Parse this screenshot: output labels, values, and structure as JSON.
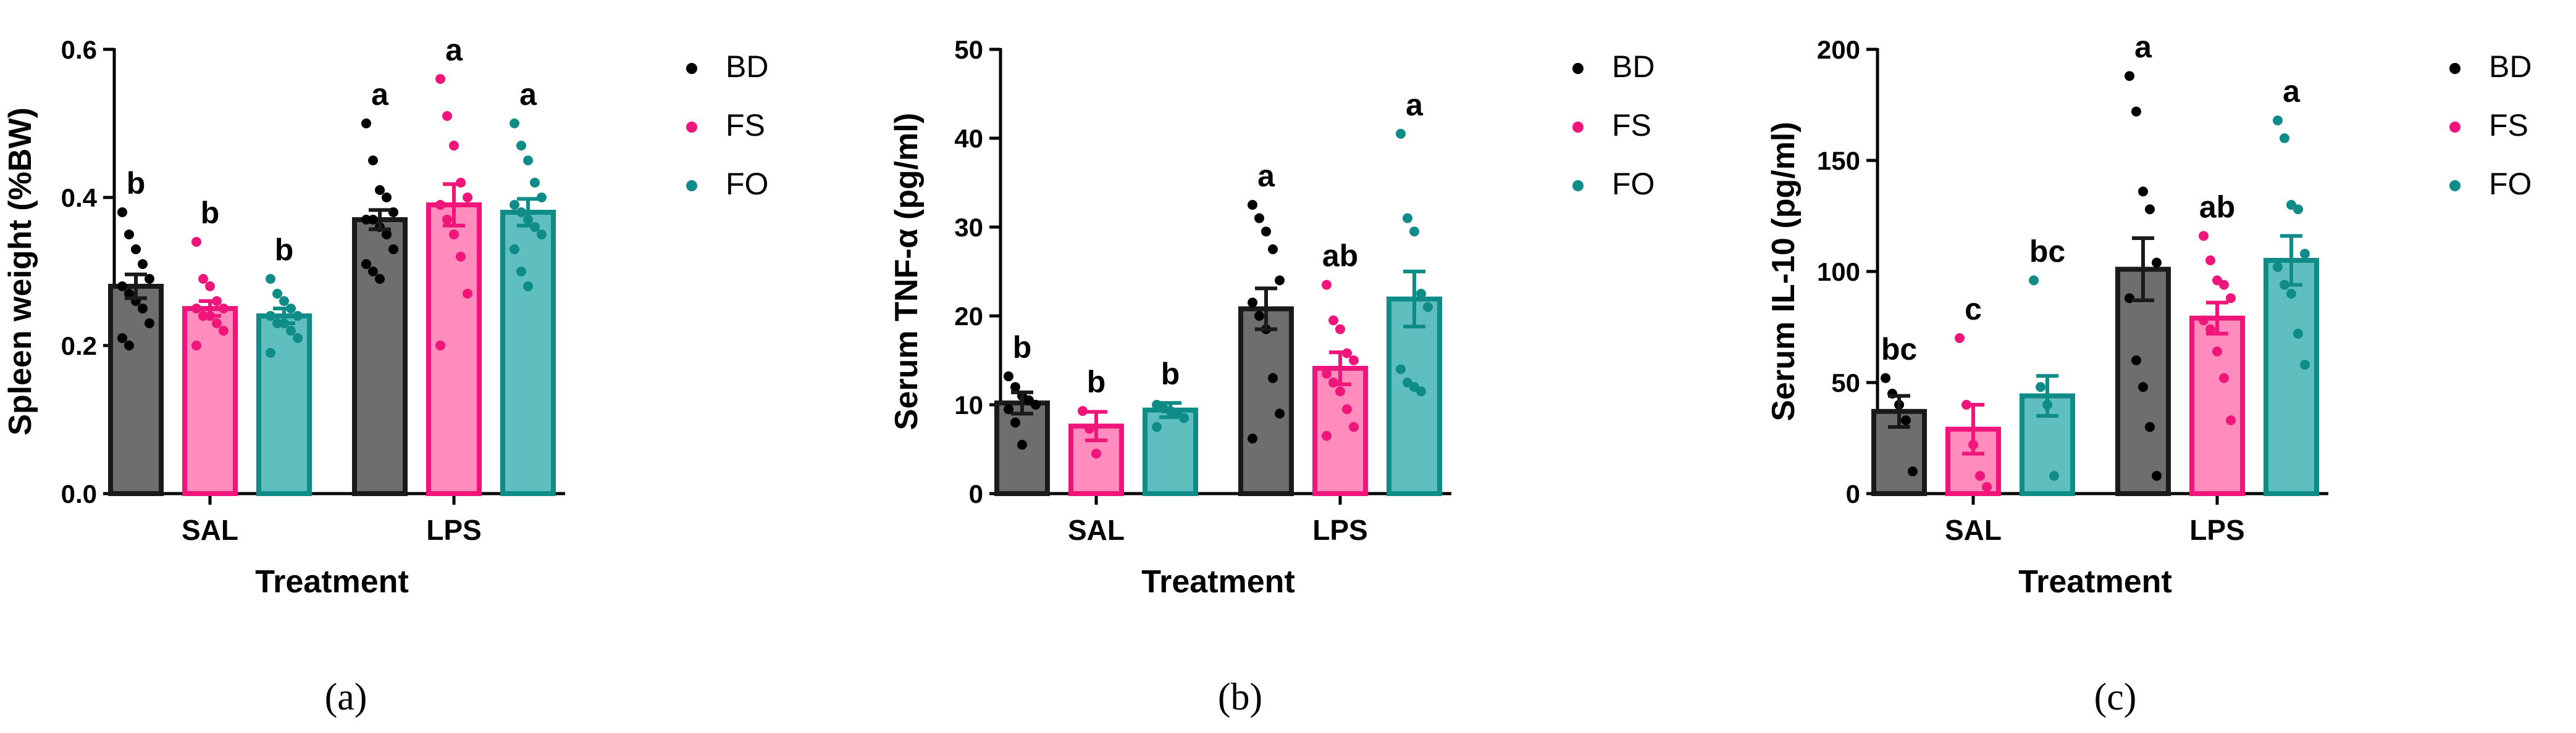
{
  "colors": {
    "BD": {
      "fill": "#6e6e6e",
      "stroke": "#1a1a1a",
      "dot": "#000000"
    },
    "FS": {
      "fill": "#ff8cbd",
      "stroke": "#f0157a",
      "dot": "#f0157a"
    },
    "FO": {
      "fill": "#5fbfbf",
      "stroke": "#108c88",
      "dot": "#108c88"
    }
  },
  "chart_data": [
    {
      "type": "bar",
      "panel": "(a)",
      "xlabel": "Treatment",
      "ylabel": "Spleen weight (%BW)",
      "categories": [
        "SAL",
        "LPS"
      ],
      "ylim": [
        0,
        0.6
      ],
      "yticks": [
        0.0,
        0.2,
        0.4,
        0.6
      ],
      "ytick_labels": [
        "0.0",
        "0.2",
        "0.4",
        "0.6"
      ],
      "legend": [
        "BD",
        "FS",
        "FO"
      ],
      "series": [
        {
          "name": "BD",
          "values": [
            0.28,
            0.37
          ],
          "sem": [
            0.016,
            0.013
          ],
          "letters": [
            "b",
            "a"
          ],
          "points": [
            [
              0.38,
              0.35,
              0.33,
              0.31,
              0.29,
              0.28,
              0.27,
              0.26,
              0.25,
              0.23,
              0.21,
              0.2
            ],
            [
              0.5,
              0.45,
              0.41,
              0.4,
              0.38,
              0.37,
              0.37,
              0.36,
              0.35,
              0.33,
              0.31,
              0.3,
              0.29
            ]
          ]
        },
        {
          "name": "FS",
          "values": [
            0.25,
            0.39
          ],
          "sem": [
            0.01,
            0.028
          ],
          "letters": [
            "b",
            "a"
          ],
          "points": [
            [
              0.34,
              0.29,
              0.28,
              0.26,
              0.25,
              0.25,
              0.24,
              0.24,
              0.23,
              0.22,
              0.2
            ],
            [
              0.56,
              0.51,
              0.47,
              0.42,
              0.4,
              0.39,
              0.37,
              0.35,
              0.32,
              0.27,
              0.2
            ]
          ]
        },
        {
          "name": "FO",
          "values": [
            0.24,
            0.38
          ],
          "sem": [
            0.01,
            0.018
          ],
          "letters": [
            "b",
            "a"
          ],
          "points": [
            [
              0.29,
              0.27,
              0.26,
              0.25,
              0.24,
              0.24,
              0.23,
              0.23,
              0.22,
              0.21,
              0.19
            ],
            [
              0.5,
              0.47,
              0.45,
              0.42,
              0.4,
              0.39,
              0.38,
              0.37,
              0.36,
              0.35,
              0.33,
              0.3,
              0.28
            ]
          ]
        }
      ]
    },
    {
      "type": "bar",
      "panel": "(b)",
      "xlabel": "Treatment",
      "ylabel": "Serum  TNF-α (pg/ml)",
      "categories": [
        "SAL",
        "LPS"
      ],
      "ylim": [
        0,
        50
      ],
      "yticks": [
        0,
        10,
        20,
        30,
        40,
        50
      ],
      "ytick_labels": [
        "0",
        "10",
        "20",
        "30",
        "40",
        "50"
      ],
      "legend": [
        "BD",
        "FS",
        "FO"
      ],
      "series": [
        {
          "name": "BD",
          "values": [
            10.2,
            20.8
          ],
          "sem": [
            1.2,
            2.3
          ],
          "letters": [
            "b",
            "a"
          ],
          "points": [
            [
              13.2,
              12.0,
              11.0,
              10.5,
              10.0,
              9.5,
              8.0,
              5.5
            ],
            [
              32.5,
              31.0,
              29.5,
              27.5,
              24.0,
              21.5,
              20.0,
              18.5,
              13.0,
              9.0,
              6.2
            ]
          ]
        },
        {
          "name": "FS",
          "values": [
            7.6,
            14.1
          ],
          "sem": [
            1.6,
            1.8
          ],
          "letters": [
            "b",
            "ab"
          ],
          "points": [
            [
              9.3,
              7.3,
              4.5
            ],
            [
              23.5,
              19.5,
              18.5,
              15.8,
              15.0,
              13.5,
              12.5,
              11.5,
              9.5,
              7.5,
              6.5
            ]
          ]
        },
        {
          "name": "FO",
          "values": [
            9.4,
            21.9
          ],
          "sem": [
            0.8,
            3.1
          ],
          "letters": [
            "b",
            "a"
          ],
          "points": [
            [
              10.0,
              9.6,
              9.3,
              9.0,
              8.5,
              7.5
            ],
            [
              40.5,
              31.0,
              29.5,
              22.5,
              21.0,
              14.0,
              12.5,
              12.0,
              11.5
            ]
          ]
        }
      ]
    },
    {
      "type": "bar",
      "panel": "(c)",
      "xlabel": "Treatment",
      "ylabel": "Serum  IL-10 (pg/ml)",
      "categories": [
        "SAL",
        "LPS"
      ],
      "ylim": [
        0,
        200
      ],
      "yticks": [
        0,
        50,
        100,
        150,
        200
      ],
      "ytick_labels": [
        "0",
        "50",
        "100",
        "150",
        "200"
      ],
      "legend": [
        "BD",
        "FS",
        "FO"
      ],
      "series": [
        {
          "name": "BD",
          "values": [
            37,
            101
          ],
          "sem": [
            7,
            14
          ],
          "letters": [
            "bc",
            "a"
          ],
          "points": [
            [
              52,
              45,
              40,
              33,
              10
            ],
            [
              188,
              172,
              136,
              128,
              104,
              88,
              60,
              48,
              30,
              8
            ]
          ]
        },
        {
          "name": "FS",
          "values": [
            29,
            79
          ],
          "sem": [
            11,
            7
          ],
          "letters": [
            "c",
            "ab"
          ],
          "points": [
            [
              70,
              40,
              22,
              8,
              3
            ],
            [
              116,
              105,
              96,
              94,
              88,
              78,
              74,
              64,
              52,
              33
            ]
          ]
        },
        {
          "name": "FO",
          "values": [
            44,
            105
          ],
          "sem": [
            9,
            11
          ],
          "letters": [
            "bc",
            "a"
          ],
          "points": [
            [
              96,
              48,
              40,
              8
            ],
            [
              168,
              160,
              130,
              128,
              108,
              102,
              94,
              90,
              72,
              58
            ]
          ]
        }
      ]
    }
  ]
}
